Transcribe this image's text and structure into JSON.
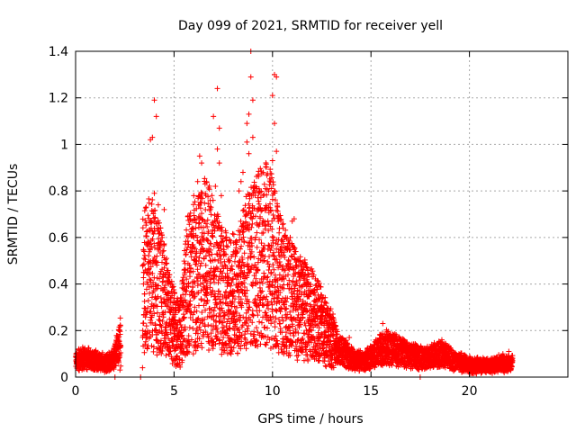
{
  "chart_data": {
    "type": "scatter",
    "title": "Day 099 of 2021, SRMTID for receiver yell",
    "xlabel": "GPS time / hours",
    "ylabel": "SRMTID / TECUs",
    "xlim": [
      0,
      25
    ],
    "ylim": [
      0,
      1.4
    ],
    "x_ticks": [
      0,
      5,
      10,
      15,
      20
    ],
    "x_tick_labels": [
      "0",
      "5",
      "10",
      "15",
      "20"
    ],
    "y_ticks": [
      0,
      0.2,
      0.4,
      0.6,
      0.8,
      1,
      1.2,
      1.4
    ],
    "y_tick_labels": [
      "0",
      "0.2",
      "0.4",
      "0.6",
      "0.8",
      "1",
      "1.2",
      "1.4"
    ],
    "grid": true,
    "marker": "+",
    "color": "#ff0000",
    "series": [
      {
        "name": "SRMTID",
        "profile": [
          {
            "x": 0.0,
            "y": 0.07
          },
          {
            "x": 0.5,
            "y": 0.08
          },
          {
            "x": 1.0,
            "y": 0.07
          },
          {
            "x": 1.5,
            "y": 0.06
          },
          {
            "x": 1.9,
            "y": 0.07
          },
          {
            "x": 2.1,
            "y": 0.12
          },
          {
            "x": 2.3,
            "y": 0.16
          },
          {
            "x": 3.4,
            "y": 0.4
          },
          {
            "x": 3.8,
            "y": 0.45
          },
          {
            "x": 4.3,
            "y": 0.38
          },
          {
            "x": 4.8,
            "y": 0.25
          },
          {
            "x": 5.3,
            "y": 0.18
          },
          {
            "x": 5.7,
            "y": 0.4
          },
          {
            "x": 6.2,
            "y": 0.45
          },
          {
            "x": 6.7,
            "y": 0.5
          },
          {
            "x": 7.2,
            "y": 0.4
          },
          {
            "x": 7.7,
            "y": 0.35
          },
          {
            "x": 8.2,
            "y": 0.35
          },
          {
            "x": 8.7,
            "y": 0.45
          },
          {
            "x": 9.2,
            "y": 0.5
          },
          {
            "x": 9.7,
            "y": 0.55
          },
          {
            "x": 10.2,
            "y": 0.45
          },
          {
            "x": 10.7,
            "y": 0.35
          },
          {
            "x": 11.2,
            "y": 0.32
          },
          {
            "x": 11.7,
            "y": 0.28
          },
          {
            "x": 12.2,
            "y": 0.25
          },
          {
            "x": 12.7,
            "y": 0.2
          },
          {
            "x": 13.2,
            "y": 0.14
          },
          {
            "x": 13.7,
            "y": 0.1
          },
          {
            "x": 14.2,
            "y": 0.07
          },
          {
            "x": 14.7,
            "y": 0.07
          },
          {
            "x": 15.2,
            "y": 0.1
          },
          {
            "x": 15.7,
            "y": 0.13
          },
          {
            "x": 16.2,
            "y": 0.12
          },
          {
            "x": 16.7,
            "y": 0.1
          },
          {
            "x": 17.2,
            "y": 0.09
          },
          {
            "x": 17.7,
            "y": 0.08
          },
          {
            "x": 18.2,
            "y": 0.09
          },
          {
            "x": 18.7,
            "y": 0.1
          },
          {
            "x": 19.2,
            "y": 0.07
          },
          {
            "x": 19.7,
            "y": 0.06
          },
          {
            "x": 20.2,
            "y": 0.05
          },
          {
            "x": 20.7,
            "y": 0.05
          },
          {
            "x": 21.2,
            "y": 0.05
          },
          {
            "x": 21.7,
            "y": 0.06
          },
          {
            "x": 22.2,
            "y": 0.06
          },
          {
            "x": 22.8,
            "y": 0.05
          }
        ],
        "peaks": [
          {
            "x": 3.8,
            "y": 1.02
          },
          {
            "x": 3.9,
            "y": 1.03
          },
          {
            "x": 4.0,
            "y": 1.19
          },
          {
            "x": 4.1,
            "y": 1.12
          },
          {
            "x": 4.0,
            "y": 0.79
          },
          {
            "x": 4.2,
            "y": 0.74
          },
          {
            "x": 4.5,
            "y": 0.72
          },
          {
            "x": 4.4,
            "y": 0.6
          },
          {
            "x": 6.3,
            "y": 0.95
          },
          {
            "x": 6.4,
            "y": 0.92
          },
          {
            "x": 6.2,
            "y": 0.84
          },
          {
            "x": 6.0,
            "y": 0.78
          },
          {
            "x": 7.0,
            "y": 1.12
          },
          {
            "x": 7.2,
            "y": 1.24
          },
          {
            "x": 7.3,
            "y": 1.07
          },
          {
            "x": 7.2,
            "y": 0.98
          },
          {
            "x": 7.3,
            "y": 0.92
          },
          {
            "x": 7.1,
            "y": 0.82
          },
          {
            "x": 7.4,
            "y": 0.78
          },
          {
            "x": 8.3,
            "y": 0.8
          },
          {
            "x": 8.4,
            "y": 0.84
          },
          {
            "x": 8.5,
            "y": 0.88
          },
          {
            "x": 8.7,
            "y": 1.01
          },
          {
            "x": 8.8,
            "y": 1.13
          },
          {
            "x": 8.9,
            "y": 1.4
          },
          {
            "x": 8.9,
            "y": 1.29
          },
          {
            "x": 9.0,
            "y": 1.19
          },
          {
            "x": 8.7,
            "y": 1.09
          },
          {
            "x": 9.0,
            "y": 1.03
          },
          {
            "x": 8.8,
            "y": 0.96
          },
          {
            "x": 10.1,
            "y": 1.3
          },
          {
            "x": 10.2,
            "y": 1.29
          },
          {
            "x": 10.0,
            "y": 1.21
          },
          {
            "x": 10.1,
            "y": 1.09
          },
          {
            "x": 10.2,
            "y": 0.97
          },
          {
            "x": 10.0,
            "y": 0.93
          },
          {
            "x": 10.1,
            "y": 0.8
          },
          {
            "x": 9.7,
            "y": 0.73
          },
          {
            "x": 9.8,
            "y": 0.73
          },
          {
            "x": 11.0,
            "y": 0.67
          },
          {
            "x": 11.1,
            "y": 0.68
          },
          {
            "x": 10.9,
            "y": 0.6
          },
          {
            "x": 11.4,
            "y": 0.5
          },
          {
            "x": 11.5,
            "y": 0.46
          },
          {
            "x": 12.3,
            "y": 0.33
          },
          {
            "x": 12.8,
            "y": 0.27
          },
          {
            "x": 13.9,
            "y": 0.17
          },
          {
            "x": 15.6,
            "y": 0.23
          },
          {
            "x": 16.0,
            "y": 0.18
          },
          {
            "x": 18.6,
            "y": 0.16
          },
          {
            "x": 18.8,
            "y": 0.14
          },
          {
            "x": 21.7,
            "y": 0.1
          },
          {
            "x": 22.0,
            "y": 0.11
          },
          {
            "x": 3.4,
            "y": 0.04
          },
          {
            "x": 3.3,
            "y": 0.0
          },
          {
            "x": 2.0,
            "y": 0.0
          },
          {
            "x": 17.5,
            "y": 0.0
          }
        ]
      }
    ]
  }
}
